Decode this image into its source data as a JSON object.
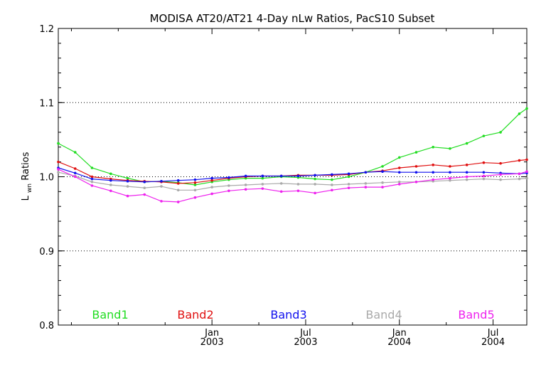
{
  "chart_data": {
    "type": "line",
    "title": "MODISA AT20/AT21 4-Day nLw Ratios, PacS10 Subset",
    "ylabel": "Lwn Ratios",
    "ylabel_main": "L",
    "ylabel_sub": "wn",
    "ylabel_rest": " Ratios",
    "xlabel": "",
    "ylim": [
      0.8,
      1.2
    ],
    "xlim": [
      2002.18,
      2004.68
    ],
    "y_ticks": [
      0.8,
      0.9,
      1.0,
      1.1,
      1.2
    ],
    "y_tick_labels": [
      "0.8",
      "0.9",
      "1.0",
      "1.1",
      "1.2"
    ],
    "x_ticks": [
      {
        "x": 2003.0,
        "month": "Jan",
        "year": "2003"
      },
      {
        "x": 2003.5,
        "month": "Jul",
        "year": "2003"
      },
      {
        "x": 2004.0,
        "month": "Jan",
        "year": "2004"
      },
      {
        "x": 2004.5,
        "month": "Jul",
        "year": "2004"
      }
    ],
    "x_minor_ticks": [
      2002.25,
      2002.5,
      2002.75,
      2003.25,
      2003.75,
      2004.25
    ],
    "grid": {
      "horizontal_dotted": [
        0.9,
        1.0,
        1.1
      ],
      "vertical": false
    },
    "legend_placement": "bottom inside plot",
    "series": [
      {
        "name": "Band1",
        "color": "#22dd22",
        "points": [
          [
            2002.18,
            1.045
          ],
          [
            2002.27,
            1.033
          ],
          [
            2002.36,
            1.012
          ],
          [
            2002.46,
            1.004
          ],
          [
            2002.55,
            0.998
          ],
          [
            2002.64,
            0.993
          ],
          [
            2002.73,
            0.994
          ],
          [
            2002.82,
            0.992
          ],
          [
            2002.91,
            0.989
          ],
          [
            2003.0,
            0.993
          ],
          [
            2003.09,
            0.996
          ],
          [
            2003.18,
            0.998
          ],
          [
            2003.27,
            0.998
          ],
          [
            2003.37,
            1.0
          ],
          [
            2003.46,
            0.999
          ],
          [
            2003.55,
            0.997
          ],
          [
            2003.64,
            0.996
          ],
          [
            2003.73,
            1.0
          ],
          [
            2003.82,
            1.006
          ],
          [
            2003.91,
            1.014
          ],
          [
            2004.0,
            1.026
          ],
          [
            2004.09,
            1.033
          ],
          [
            2004.18,
            1.04
          ],
          [
            2004.27,
            1.038
          ],
          [
            2004.36,
            1.045
          ],
          [
            2004.45,
            1.055
          ],
          [
            2004.54,
            1.06
          ],
          [
            2004.64,
            1.085
          ],
          [
            2004.68,
            1.092
          ]
        ]
      },
      {
        "name": "Band2",
        "color": "#e01010",
        "points": [
          [
            2002.18,
            1.02
          ],
          [
            2002.27,
            1.011
          ],
          [
            2002.36,
            1.0
          ],
          [
            2002.46,
            0.997
          ],
          [
            2002.55,
            0.995
          ],
          [
            2002.64,
            0.994
          ],
          [
            2002.73,
            0.993
          ],
          [
            2002.82,
            0.991
          ],
          [
            2002.91,
            0.992
          ],
          [
            2003.0,
            0.995
          ],
          [
            2003.09,
            0.998
          ],
          [
            2003.18,
            1.0
          ],
          [
            2003.27,
            1.001
          ],
          [
            2003.37,
            1.001
          ],
          [
            2003.46,
            1.002
          ],
          [
            2003.55,
            1.002
          ],
          [
            2003.64,
            1.002
          ],
          [
            2003.73,
            1.003
          ],
          [
            2003.82,
            1.006
          ],
          [
            2003.91,
            1.008
          ],
          [
            2004.0,
            1.012
          ],
          [
            2004.09,
            1.014
          ],
          [
            2004.18,
            1.016
          ],
          [
            2004.27,
            1.014
          ],
          [
            2004.36,
            1.016
          ],
          [
            2004.45,
            1.019
          ],
          [
            2004.54,
            1.018
          ],
          [
            2004.64,
            1.022
          ],
          [
            2004.68,
            1.023
          ]
        ]
      },
      {
        "name": "Band3",
        "color": "#1010ee",
        "points": [
          [
            2002.18,
            1.012
          ],
          [
            2002.27,
            1.005
          ],
          [
            2002.36,
            0.997
          ],
          [
            2002.46,
            0.995
          ],
          [
            2002.55,
            0.994
          ],
          [
            2002.64,
            0.993
          ],
          [
            2002.73,
            0.994
          ],
          [
            2002.82,
            0.995
          ],
          [
            2002.91,
            0.996
          ],
          [
            2003.0,
            0.998
          ],
          [
            2003.09,
            0.999
          ],
          [
            2003.18,
            1.001
          ],
          [
            2003.27,
            1.001
          ],
          [
            2003.37,
            1.001
          ],
          [
            2003.46,
            1.001
          ],
          [
            2003.55,
            1.002
          ],
          [
            2003.64,
            1.003
          ],
          [
            2003.73,
            1.004
          ],
          [
            2003.82,
            1.006
          ],
          [
            2003.91,
            1.007
          ],
          [
            2004.0,
            1.006
          ],
          [
            2004.09,
            1.006
          ],
          [
            2004.18,
            1.006
          ],
          [
            2004.27,
            1.006
          ],
          [
            2004.36,
            1.006
          ],
          [
            2004.45,
            1.006
          ],
          [
            2004.54,
            1.005
          ],
          [
            2004.64,
            1.004
          ],
          [
            2004.68,
            1.005
          ]
        ]
      },
      {
        "name": "Band4",
        "color": "#aaaaaa",
        "points": [
          [
            2002.18,
            1.006
          ],
          [
            2002.27,
            1.001
          ],
          [
            2002.36,
            0.993
          ],
          [
            2002.46,
            0.989
          ],
          [
            2002.55,
            0.987
          ],
          [
            2002.64,
            0.985
          ],
          [
            2002.73,
            0.987
          ],
          [
            2002.82,
            0.982
          ],
          [
            2002.91,
            0.982
          ],
          [
            2003.0,
            0.986
          ],
          [
            2003.09,
            0.988
          ],
          [
            2003.18,
            0.989
          ],
          [
            2003.27,
            0.99
          ],
          [
            2003.37,
            0.991
          ],
          [
            2003.46,
            0.99
          ],
          [
            2003.55,
            0.99
          ],
          [
            2003.64,
            0.989
          ],
          [
            2003.73,
            0.99
          ],
          [
            2003.82,
            0.991
          ],
          [
            2003.91,
            0.992
          ],
          [
            2004.0,
            0.993
          ],
          [
            2004.09,
            0.993
          ],
          [
            2004.18,
            0.994
          ],
          [
            2004.27,
            0.995
          ],
          [
            2004.36,
            0.996
          ],
          [
            2004.45,
            0.997
          ],
          [
            2004.54,
            0.996
          ],
          [
            2004.64,
            0.997
          ],
          [
            2004.68,
            0.998
          ]
        ]
      },
      {
        "name": "Band5",
        "color": "#ee22ee",
        "points": [
          [
            2002.18,
            1.01
          ],
          [
            2002.27,
            1.0
          ],
          [
            2002.36,
            0.988
          ],
          [
            2002.46,
            0.981
          ],
          [
            2002.55,
            0.974
          ],
          [
            2002.64,
            0.976
          ],
          [
            2002.73,
            0.967
          ],
          [
            2002.82,
            0.966
          ],
          [
            2002.91,
            0.972
          ],
          [
            2003.0,
            0.977
          ],
          [
            2003.09,
            0.981
          ],
          [
            2003.18,
            0.983
          ],
          [
            2003.27,
            0.984
          ],
          [
            2003.37,
            0.98
          ],
          [
            2003.46,
            0.981
          ],
          [
            2003.55,
            0.978
          ],
          [
            2003.64,
            0.982
          ],
          [
            2003.73,
            0.985
          ],
          [
            2003.82,
            0.986
          ],
          [
            2003.91,
            0.986
          ],
          [
            2004.0,
            0.99
          ],
          [
            2004.09,
            0.993
          ],
          [
            2004.18,
            0.996
          ],
          [
            2004.27,
            0.998
          ],
          [
            2004.36,
            1.0
          ],
          [
            2004.45,
            1.001
          ],
          [
            2004.54,
            1.003
          ],
          [
            2004.64,
            1.004
          ],
          [
            2004.68,
            1.007
          ]
        ]
      }
    ],
    "legend": [
      "Band1",
      "Band2",
      "Band3",
      "Band4",
      "Band5"
    ]
  }
}
